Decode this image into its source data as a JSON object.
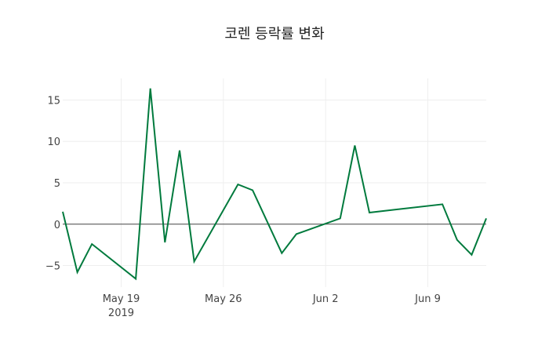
{
  "chart_data": {
    "type": "line",
    "title": "코렌 등락률 변화",
    "xlabel": "",
    "ylabel": "",
    "ylim": [
      -7.6,
      17.6
    ],
    "xlim": [
      "2019-05-15",
      "2019-06-13"
    ],
    "grid": true,
    "line_color": "#007a3d",
    "zero_line_color": "#444444",
    "x_ticks": [
      {
        "date": "2019-05-19",
        "label": "May 19",
        "sub": "2019"
      },
      {
        "date": "2019-05-26",
        "label": "May 26",
        "sub": ""
      },
      {
        "date": "2019-06-02",
        "label": "Jun 2",
        "sub": ""
      },
      {
        "date": "2019-06-09",
        "label": "Jun 9",
        "sub": ""
      }
    ],
    "y_ticks": [
      -5,
      0,
      5,
      10,
      15
    ],
    "series": [
      {
        "name": "등락률",
        "x": [
          "2019-05-15",
          "2019-05-16",
          "2019-05-17",
          "2019-05-20",
          "2019-05-21",
          "2019-05-22",
          "2019-05-23",
          "2019-05-24",
          "2019-05-27",
          "2019-05-28",
          "2019-05-30",
          "2019-05-31",
          "2019-06-03",
          "2019-06-04",
          "2019-06-05",
          "2019-06-10",
          "2019-06-11",
          "2019-06-12",
          "2019-06-13"
        ],
        "values": [
          1.5,
          -5.8,
          -2.4,
          -6.6,
          16.4,
          -2.2,
          8.9,
          -4.5,
          4.8,
          4.1,
          -3.5,
          -1.2,
          0.7,
          9.5,
          1.4,
          2.4,
          -1.9,
          -3.7,
          0.7
        ]
      }
    ]
  }
}
